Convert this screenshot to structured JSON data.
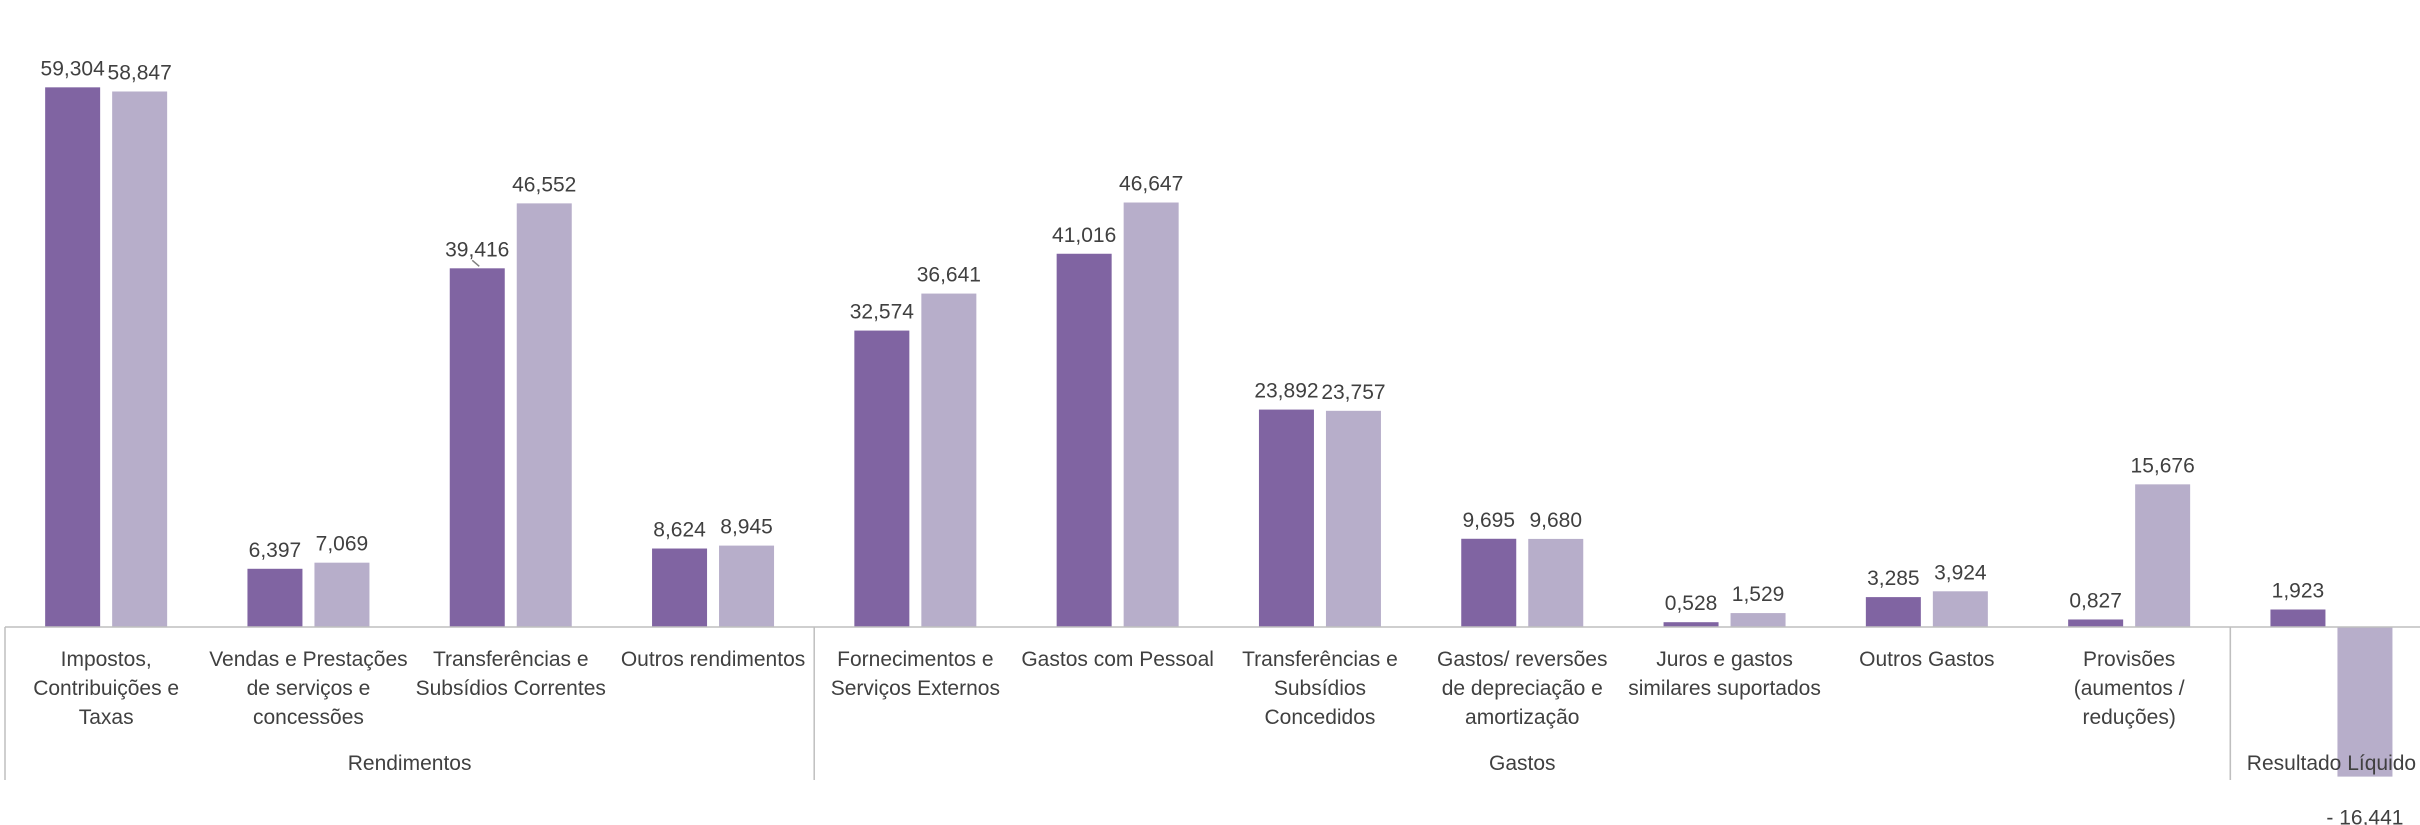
{
  "chart_data": {
    "type": "bar",
    "title": "",
    "xlabel": "",
    "ylabel": "",
    "grid": false,
    "ylim": [
      -16.441,
      59.304
    ],
    "colors": [
      "#8064A2",
      "#B7AECA"
    ],
    "groups": [
      {
        "label": "Rendimentos",
        "categories": [
          "cat0",
          "cat1",
          "cat2",
          "cat3"
        ]
      },
      {
        "label": "Gastos",
        "categories": [
          "cat4",
          "cat5",
          "cat6",
          "cat7",
          "cat8",
          "cat9",
          "cat10"
        ]
      },
      {
        "label": "Resultado Líquido",
        "categories": [
          "cat11"
        ]
      }
    ],
    "categories": [
      {
        "id": "cat0",
        "lines": [
          "Impostos,",
          "Contribuições e",
          "Taxas"
        ]
      },
      {
        "id": "cat1",
        "lines": [
          "Vendas e Prestações",
          "de serviços e",
          "concessões"
        ]
      },
      {
        "id": "cat2",
        "lines": [
          "Transferências e",
          "Subsídios Correntes"
        ]
      },
      {
        "id": "cat3",
        "lines": [
          "Outros rendimentos"
        ]
      },
      {
        "id": "cat4",
        "lines": [
          "Fornecimentos e",
          "Serviços Externos"
        ]
      },
      {
        "id": "cat5",
        "lines": [
          "Gastos com Pessoal"
        ]
      },
      {
        "id": "cat6",
        "lines": [
          "Transferências e",
          "Subsídios",
          "Concedidos"
        ]
      },
      {
        "id": "cat7",
        "lines": [
          "Gastos/ reversões",
          "de depreciação e",
          "amortização"
        ]
      },
      {
        "id": "cat8",
        "lines": [
          "Juros e gastos",
          "similares suportados"
        ]
      },
      {
        "id": "cat9",
        "lines": [
          "Outros Gastos"
        ]
      },
      {
        "id": "cat10",
        "lines": [
          "Provisões",
          "(aumentos /",
          "reduções)"
        ]
      },
      {
        "id": "cat11",
        "lines": []
      }
    ],
    "series": [
      {
        "values": [
          59.304,
          6.397,
          39.416,
          8.624,
          32.574,
          41.016,
          23.892,
          9.695,
          0.528,
          3.285,
          0.827,
          1.923
        ],
        "labels": [
          "59,304",
          "6,397",
          "39,416",
          "8,624",
          "32,574",
          "41,016",
          "23,892",
          "9,695",
          "0,528",
          "3,285",
          "0,827",
          "1,923"
        ]
      },
      {
        "values": [
          58.847,
          7.069,
          46.552,
          8.945,
          36.641,
          46.647,
          23.757,
          9.68,
          1.529,
          3.924,
          15.676,
          -16.441
        ],
        "labels": [
          "58,847",
          "7,069",
          "46,552",
          "8,945",
          "36,641",
          "46,647",
          "23,757",
          "9,680",
          "1,529",
          "3,924",
          "15,676",
          "- 16,441"
        ]
      }
    ]
  }
}
